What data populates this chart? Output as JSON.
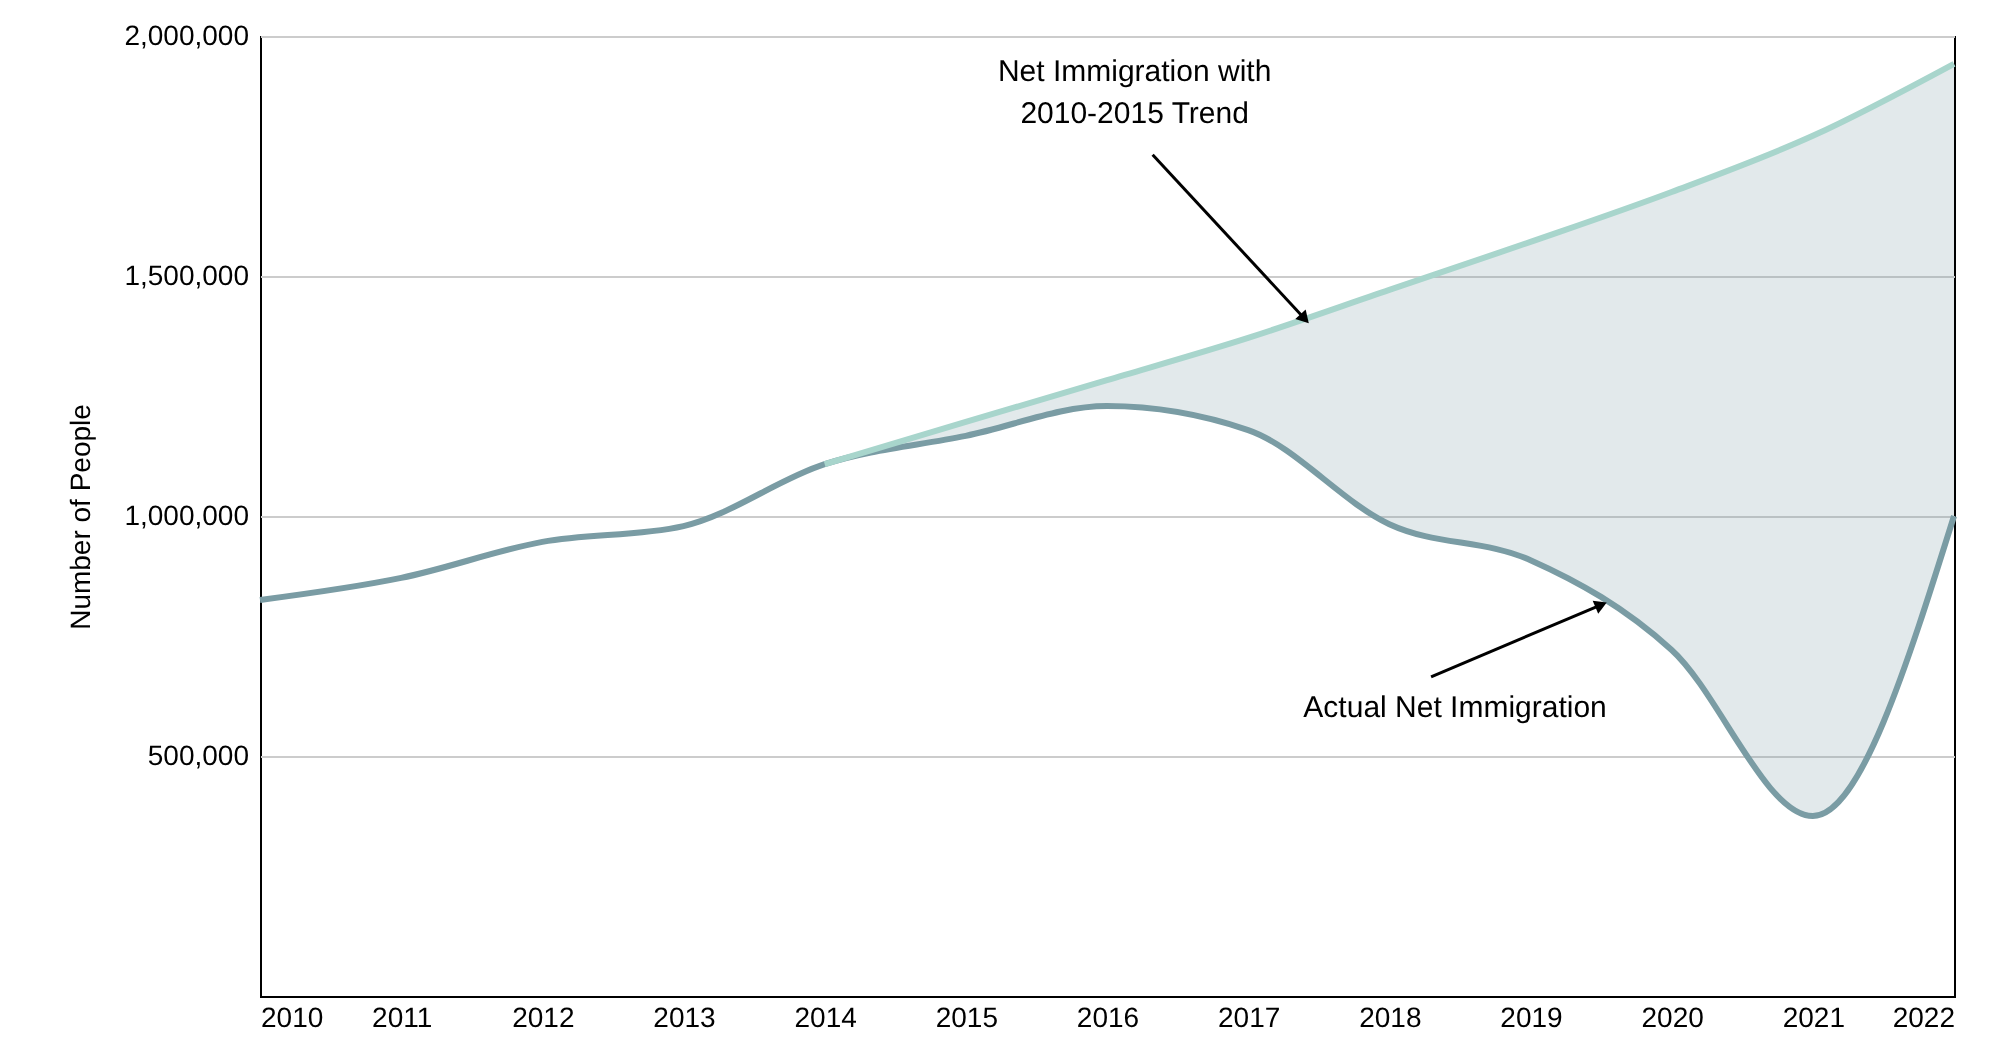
{
  "chart_data": {
    "type": "line",
    "ylabel": "Number of People",
    "x": [
      2010,
      2011,
      2012,
      2013,
      2014,
      2015,
      2016,
      2017,
      2018,
      2019,
      2020,
      2021,
      2022
    ],
    "series": [
      {
        "color": "#7a9ca4",
        "values": [
          825000,
          871000,
          946000,
          979000,
          1108000,
          1167000,
          1229000,
          1179000,
          983000,
          908000,
          721000,
          375000,
          1000000
        ]
      },
      {
        "color": "#a8d5cc",
        "x": [
          2014,
          2015,
          2016,
          2017,
          2018,
          2019,
          2020,
          2021,
          2022
        ],
        "values": [
          1108000,
          1196000,
          1283000,
          1371000,
          1471000,
          1571000,
          1675000,
          1792000,
          1942000
        ],
        "lower": [
          1108000,
          1167000,
          1229000,
          1179000,
          983000,
          908000,
          721000,
          375000,
          1000000
        ],
        "upper": [
          1108000,
          1196000,
          1283000,
          1371000,
          1471000,
          1571000,
          1675000,
          1792000,
          1942000
        ]
      }
    ],
    "annotations": [
      {
        "text": "Net Immigration with\n2010-2015 Trend",
        "x": 2017.4,
        "y": 1411000
      },
      {
        "text": "Actual Net Immigration",
        "x": 2019.5,
        "y": 815000
      }
    ],
    "xlim": [
      2010,
      2022
    ],
    "xticks": [
      2010,
      2011,
      2012,
      2013,
      2014,
      2015,
      2016,
      2017,
      2018,
      2019,
      2020,
      2021,
      2022
    ],
    "ylim": [
      0,
      2000000
    ],
    "yticks": [
      {
        "value": 500000,
        "label": "500,000"
      },
      {
        "value": 1000000,
        "label": "1,000,000"
      },
      {
        "value": 1500000,
        "label": "1,500,000"
      },
      {
        "value": 2000000,
        "label": "2,000,000"
      }
    ],
    "grid": "y",
    "marker": "none",
    "line_style": "solid"
  }
}
